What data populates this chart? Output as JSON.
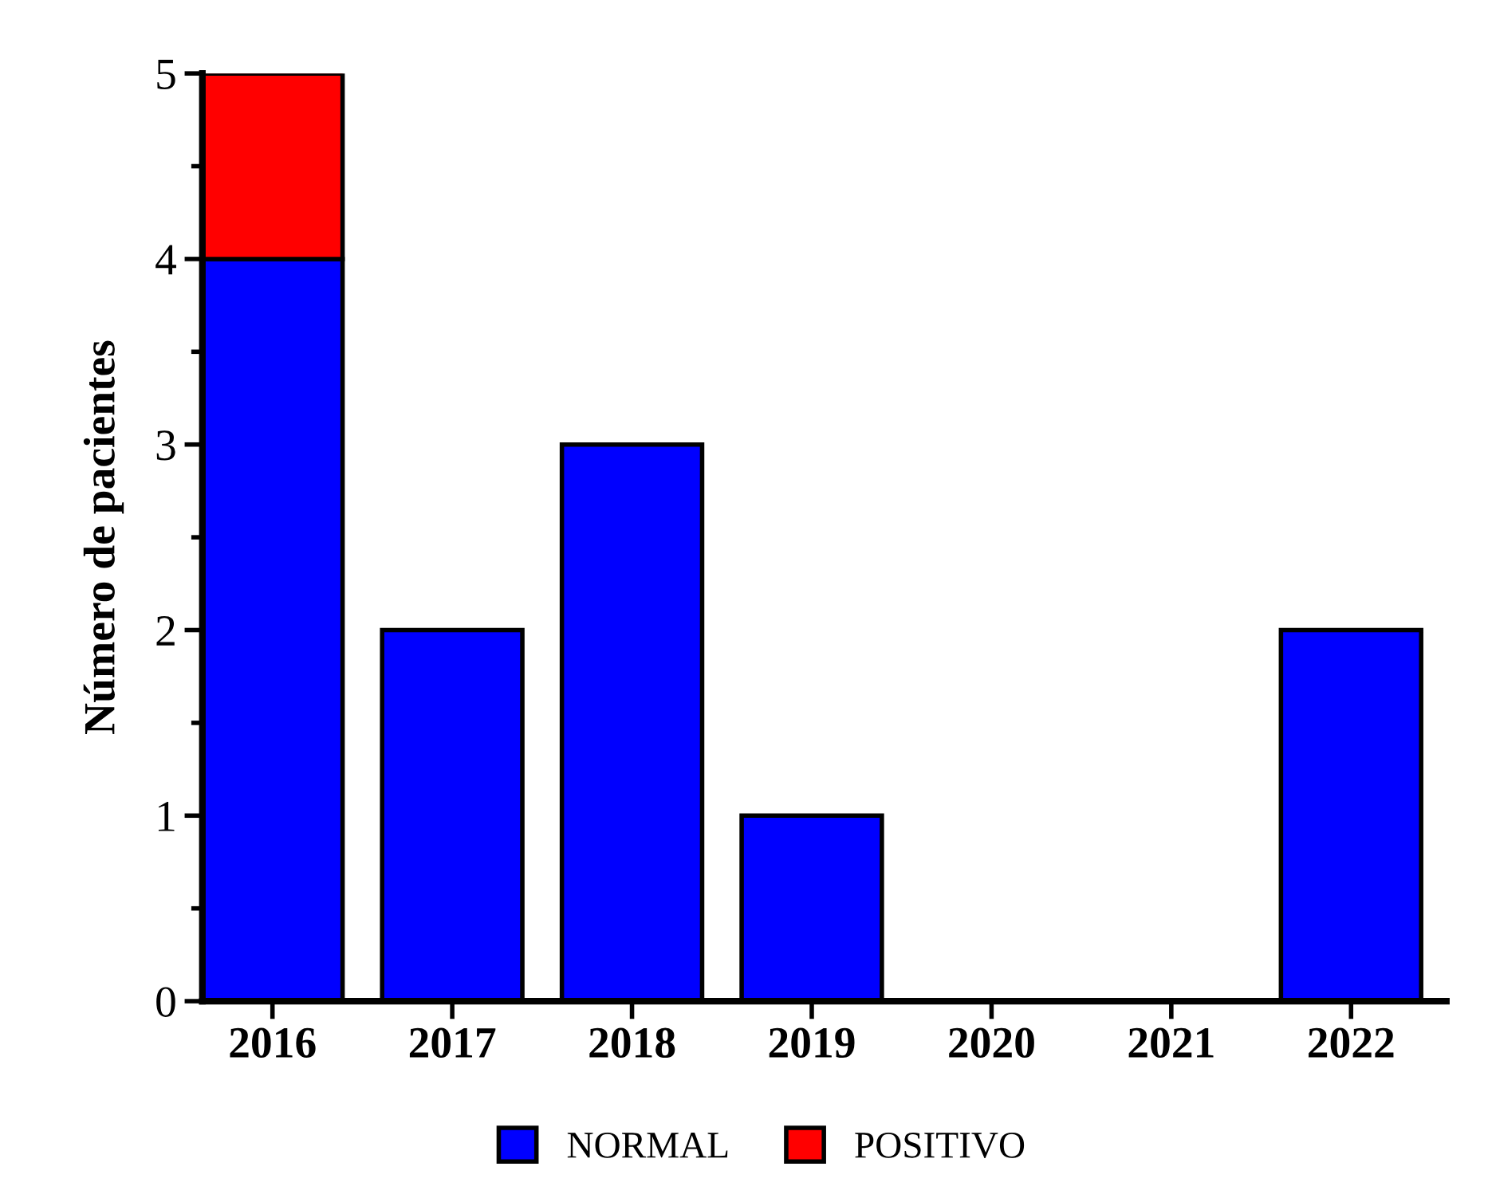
{
  "chart_data": {
    "type": "bar",
    "stacked": true,
    "ylabel": "Número de pacientes",
    "categories": [
      "2016",
      "2017",
      "2018",
      "2019",
      "2020",
      "2021",
      "2022"
    ],
    "series": [
      {
        "name": "NORMAL",
        "color": "#0000ff",
        "values": [
          4,
          2,
          3,
          1,
          0,
          0,
          2
        ]
      },
      {
        "name": "POSITIVO",
        "color": "#ff0000",
        "values": [
          1,
          0,
          0,
          0,
          0,
          0,
          0
        ]
      }
    ],
    "ylim": [
      0,
      5
    ],
    "yticks": [
      0,
      1,
      2,
      3,
      4,
      5
    ],
    "grid": false,
    "legend": "bottom"
  }
}
